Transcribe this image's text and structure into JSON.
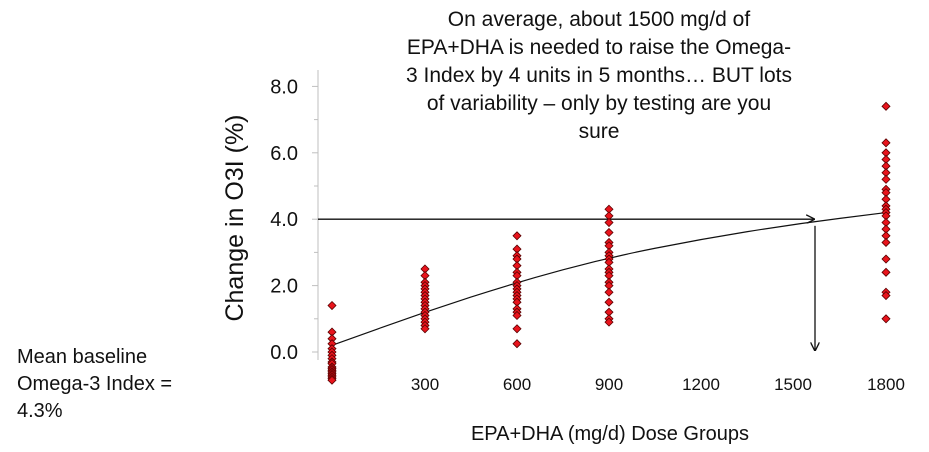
{
  "chart_data": {
    "type": "scatter",
    "title_lines": [
      "On average, about 1500 mg/d of",
      "EPA+DHA is needed to raise the Omega-",
      "3 Index by 4 units in 5 months… BUT lots",
      "of variability – only by testing are you",
      "sure"
    ],
    "xlabel": "EPA+DHA (mg/d) Dose Groups",
    "ylabel": "Change in O3I (%)",
    "x_tick_labels": [
      "300",
      "600",
      "900",
      "1200",
      "1500",
      "1800"
    ],
    "y_tick_labels": [
      "0.0",
      "2.0",
      "4.0",
      "6.0",
      "8.0"
    ],
    "ylim": [
      -1.0,
      8.5
    ],
    "xlim": [
      0,
      1800
    ],
    "marker_color": "#e8141c",
    "marker_edge_color": "#5a0000",
    "groups": [
      {
        "dose": 0,
        "values": [
          1.4,
          0.6,
          0.4,
          0.25,
          0.1,
          0.0,
          -0.1,
          -0.2,
          -0.3,
          -0.35,
          -0.45,
          -0.5,
          -0.55,
          -0.6,
          -0.65,
          -0.7,
          -0.75,
          -0.8,
          -0.85
        ]
      },
      {
        "dose": 300,
        "values": [
          2.5,
          2.3,
          2.1,
          2.0,
          1.9,
          1.8,
          1.7,
          1.6,
          1.5,
          1.4,
          1.3,
          1.2,
          1.1,
          1.0,
          0.9,
          0.8,
          0.7
        ]
      },
      {
        "dose": 600,
        "values": [
          3.5,
          3.1,
          2.9,
          2.8,
          2.6,
          2.4,
          2.3,
          2.1,
          2.0,
          1.9,
          1.8,
          1.7,
          1.6,
          1.5,
          1.3,
          1.2,
          1.1,
          0.7,
          0.25
        ]
      },
      {
        "dose": 900,
        "values": [
          4.3,
          4.1,
          3.9,
          3.6,
          3.3,
          3.2,
          3.0,
          2.9,
          2.8,
          2.7,
          2.5,
          2.4,
          2.3,
          2.1,
          2.0,
          1.8,
          1.5,
          1.2,
          1.0,
          0.9
        ]
      },
      {
        "dose": 1800,
        "values": [
          7.4,
          6.3,
          6.0,
          5.8,
          5.6,
          5.4,
          5.2,
          4.9,
          4.8,
          4.6,
          4.4,
          4.3,
          4.2,
          4.1,
          3.9,
          3.7,
          3.5,
          3.3,
          2.8,
          2.4,
          1.8,
          1.7,
          1.0
        ]
      }
    ],
    "trend_line": {
      "label": "fitted curve",
      "points": [
        [
          0,
          0.2
        ],
        [
          300,
          1.2
        ],
        [
          600,
          2.1
        ],
        [
          900,
          2.85
        ],
        [
          1200,
          3.4
        ],
        [
          1500,
          3.85
        ],
        [
          1800,
          4.2
        ]
      ]
    },
    "annotation_arrows": [
      {
        "name": "horizontal-arrow",
        "from": [
          0,
          4.0
        ],
        "to": [
          1560,
          4.0
        ]
      },
      {
        "name": "vertical-arrow",
        "from": [
          1560,
          3.8
        ],
        "to": [
          1560,
          0.1
        ]
      }
    ]
  },
  "note": {
    "lines": [
      "Mean baseline",
      "Omega-3 Index =",
      "4.3%"
    ]
  }
}
